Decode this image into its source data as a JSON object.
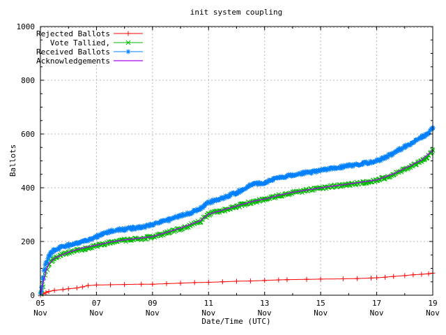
{
  "title": "init system coupling",
  "axes": {
    "x_label": "Date/Time (UTC)",
    "y_label": "Ballots",
    "x_min_day": 5,
    "x_max_day": 19,
    "y_min": 0,
    "y_max": 1000,
    "y_ticks": [
      0,
      200,
      400,
      600,
      800,
      1000
    ],
    "y_minor_step": 50,
    "x_ticks": [
      {
        "day": 5,
        "top": "05",
        "bottom": "Nov"
      },
      {
        "day": 7,
        "top": "07",
        "bottom": "Nov"
      },
      {
        "day": 9,
        "top": "09",
        "bottom": "Nov"
      },
      {
        "day": 11,
        "top": "11",
        "bottom": "Nov"
      },
      {
        "day": 13,
        "top": "13",
        "bottom": "Nov"
      },
      {
        "day": 15,
        "top": "15",
        "bottom": "Nov"
      },
      {
        "day": 17,
        "top": "17",
        "bottom": "Nov"
      },
      {
        "day": 19,
        "top": "19",
        "bottom": "Nov"
      }
    ],
    "x_minor_days": [
      6,
      8,
      10,
      12,
      14,
      16,
      18
    ],
    "x_grid_days": [
      7,
      9,
      11,
      13,
      15,
      17
    ],
    "y_grid_values": [
      200,
      400,
      600,
      800,
      1000
    ],
    "grid_on": true
  },
  "colors": {
    "rejected": "#ff0000",
    "tallied": "#00b800",
    "received": "#0080ff",
    "acks": "#aa00ee",
    "grid": "#b8b8b8",
    "border": "#000000",
    "background": "#ffffff",
    "text": "#000000"
  },
  "legend": {
    "position": "top-left-inside",
    "items": [
      {
        "label": "Rejected Ballots",
        "series": "rejected",
        "marker": "plus"
      },
      {
        "label": "Vote Tallied,",
        "series": "tallied",
        "marker": "cross"
      },
      {
        "label": "Received Ballots",
        "series": "received",
        "marker": "star"
      },
      {
        "label": "Acknowledgements",
        "series": "acks",
        "marker": "none"
      }
    ]
  },
  "chart_data": {
    "type": "line",
    "title": "init system coupling",
    "xlabel": "Date/Time (UTC)",
    "ylabel": "Ballots",
    "x_unit": "day of November (UTC)",
    "xlim": [
      5,
      19
    ],
    "ylim": [
      0,
      1000
    ],
    "legend_position": "top-left",
    "grid": true,
    "series": [
      {
        "name": "Rejected Ballots",
        "key": "rejected",
        "marker": "plus",
        "style": "sparse",
        "points": [
          [
            5.0,
            0
          ],
          [
            5.1,
            5
          ],
          [
            5.2,
            10
          ],
          [
            5.3,
            14
          ],
          [
            5.5,
            18
          ],
          [
            5.8,
            21
          ],
          [
            6.0,
            24
          ],
          [
            6.3,
            27
          ],
          [
            6.5,
            31
          ],
          [
            6.7,
            36
          ],
          [
            7.0,
            38
          ],
          [
            7.5,
            39
          ],
          [
            8.0,
            40
          ],
          [
            8.6,
            41
          ],
          [
            9.0,
            41
          ],
          [
            9.5,
            43
          ],
          [
            10.0,
            45
          ],
          [
            10.5,
            47
          ],
          [
            11.0,
            48
          ],
          [
            11.5,
            50
          ],
          [
            12.0,
            52
          ],
          [
            12.5,
            53
          ],
          [
            13.0,
            55
          ],
          [
            13.5,
            57
          ],
          [
            13.8,
            58
          ],
          [
            14.5,
            59
          ],
          [
            15.0,
            60
          ],
          [
            15.8,
            61
          ],
          [
            16.3,
            62
          ],
          [
            16.8,
            64
          ],
          [
            17.0,
            65
          ],
          [
            17.3,
            67
          ],
          [
            17.6,
            70
          ],
          [
            18.0,
            73
          ],
          [
            18.3,
            76
          ],
          [
            18.6,
            78
          ],
          [
            18.85,
            80
          ],
          [
            19.0,
            82
          ]
        ]
      },
      {
        "name": "Vote Tallied,",
        "key": "tallied",
        "marker": "cross",
        "style": "dense",
        "points": [
          [
            5.0,
            2
          ],
          [
            5.05,
            18
          ],
          [
            5.1,
            45
          ],
          [
            5.15,
            70
          ],
          [
            5.2,
            90
          ],
          [
            5.3,
            115
          ],
          [
            5.4,
            128
          ],
          [
            5.5,
            136
          ],
          [
            5.7,
            148
          ],
          [
            6.0,
            158
          ],
          [
            6.3,
            166
          ],
          [
            6.6,
            174
          ],
          [
            6.8,
            179
          ],
          [
            7.0,
            184
          ],
          [
            7.2,
            190
          ],
          [
            7.5,
            196
          ],
          [
            8.0,
            204
          ],
          [
            8.5,
            210
          ],
          [
            9.0,
            216
          ],
          [
            9.3,
            226
          ],
          [
            9.6,
            235
          ],
          [
            10.0,
            248
          ],
          [
            10.3,
            258
          ],
          [
            10.7,
            275
          ],
          [
            11.0,
            300
          ],
          [
            11.3,
            310
          ],
          [
            11.6,
            318
          ],
          [
            12.0,
            330
          ],
          [
            12.2,
            336
          ],
          [
            12.4,
            342
          ],
          [
            12.6,
            348
          ],
          [
            12.8,
            352
          ],
          [
            13.0,
            356
          ],
          [
            13.3,
            365
          ],
          [
            13.6,
            372
          ],
          [
            14.0,
            381
          ],
          [
            14.5,
            390
          ],
          [
            15.0,
            398
          ],
          [
            15.5,
            406
          ],
          [
            16.0,
            412
          ],
          [
            16.5,
            419
          ],
          [
            17.0,
            427
          ],
          [
            17.3,
            437
          ],
          [
            17.6,
            450
          ],
          [
            18.0,
            470
          ],
          [
            18.3,
            484
          ],
          [
            18.6,
            501
          ],
          [
            18.8,
            513
          ],
          [
            19.0,
            538
          ]
        ]
      },
      {
        "name": "Received Ballots",
        "key": "received",
        "marker": "star",
        "style": "dense",
        "points": [
          [
            5.0,
            5
          ],
          [
            5.05,
            30
          ],
          [
            5.1,
            70
          ],
          [
            5.15,
            100
          ],
          [
            5.2,
            120
          ],
          [
            5.3,
            145
          ],
          [
            5.4,
            158
          ],
          [
            5.5,
            168
          ],
          [
            5.7,
            178
          ],
          [
            6.0,
            186
          ],
          [
            6.3,
            193
          ],
          [
            6.6,
            201
          ],
          [
            6.8,
            207
          ],
          [
            7.0,
            218
          ],
          [
            7.2,
            230
          ],
          [
            7.5,
            238
          ],
          [
            8.0,
            246
          ],
          [
            8.5,
            252
          ],
          [
            9.0,
            261
          ],
          [
            9.3,
            272
          ],
          [
            9.6,
            281
          ],
          [
            10.0,
            295
          ],
          [
            10.3,
            305
          ],
          [
            10.7,
            322
          ],
          [
            11.0,
            345
          ],
          [
            11.3,
            355
          ],
          [
            11.6,
            365
          ],
          [
            12.0,
            382
          ],
          [
            12.2,
            392
          ],
          [
            12.4,
            404
          ],
          [
            12.6,
            412
          ],
          [
            12.8,
            416
          ],
          [
            13.0,
            420
          ],
          [
            13.3,
            430
          ],
          [
            13.6,
            438
          ],
          [
            14.0,
            447
          ],
          [
            14.5,
            456
          ],
          [
            15.0,
            465
          ],
          [
            15.5,
            474
          ],
          [
            16.0,
            482
          ],
          [
            16.5,
            491
          ],
          [
            17.0,
            500
          ],
          [
            17.3,
            513
          ],
          [
            17.6,
            528
          ],
          [
            18.0,
            553
          ],
          [
            18.3,
            570
          ],
          [
            18.6,
            588
          ],
          [
            18.8,
            599
          ],
          [
            19.0,
            622
          ]
        ]
      },
      {
        "name": "Acknowledgements",
        "key": "acks",
        "marker": "none",
        "style": "line",
        "points": [
          [
            5.0,
            4
          ],
          [
            5.1,
            47
          ],
          [
            5.2,
            92
          ],
          [
            5.3,
            117
          ],
          [
            5.5,
            138
          ],
          [
            6.0,
            160
          ],
          [
            6.5,
            176
          ],
          [
            7.0,
            186
          ],
          [
            7.5,
            198
          ],
          [
            8.0,
            206
          ],
          [
            9.0,
            218
          ],
          [
            9.6,
            237
          ],
          [
            10.0,
            250
          ],
          [
            10.7,
            277
          ],
          [
            11.0,
            302
          ],
          [
            11.6,
            320
          ],
          [
            12.0,
            332
          ],
          [
            12.6,
            350
          ],
          [
            13.0,
            358
          ],
          [
            13.6,
            374
          ],
          [
            14.0,
            383
          ],
          [
            15.0,
            400
          ],
          [
            16.0,
            414
          ],
          [
            17.0,
            429
          ],
          [
            17.6,
            452
          ],
          [
            18.0,
            472
          ],
          [
            18.6,
            503
          ],
          [
            19.0,
            540
          ]
        ]
      }
    ]
  }
}
